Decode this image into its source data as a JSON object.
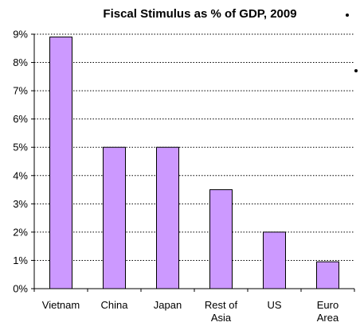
{
  "chart_data": {
    "type": "bar",
    "title": "Fiscal Stimulus as % of GDP, 2009",
    "xlabel": "",
    "ylabel": "",
    "categories": [
      "Vietnam",
      "China",
      "Japan",
      "Rest of Asia",
      "US",
      "Euro Area"
    ],
    "category_lines": [
      [
        "Vietnam"
      ],
      [
        "China"
      ],
      [
        "Japan"
      ],
      [
        "Rest of",
        "Asia"
      ],
      [
        "US"
      ],
      [
        "Euro",
        "Area"
      ]
    ],
    "values": [
      8.9,
      5.0,
      5.0,
      3.5,
      2.0,
      0.95
    ],
    "ylim": [
      0,
      9
    ],
    "yticks": [
      0,
      1,
      2,
      3,
      4,
      5,
      6,
      7,
      8,
      9
    ],
    "ytick_labels": [
      "0%",
      "1%",
      "2%",
      "3%",
      "4%",
      "5%",
      "6%",
      "7%",
      "8%",
      "9%"
    ],
    "grid": true,
    "legend": "none",
    "colors": {
      "bar_fill": "#cc99ff",
      "bar_stroke": "#000000",
      "grid": "#000000",
      "axis": "#000000"
    }
  }
}
